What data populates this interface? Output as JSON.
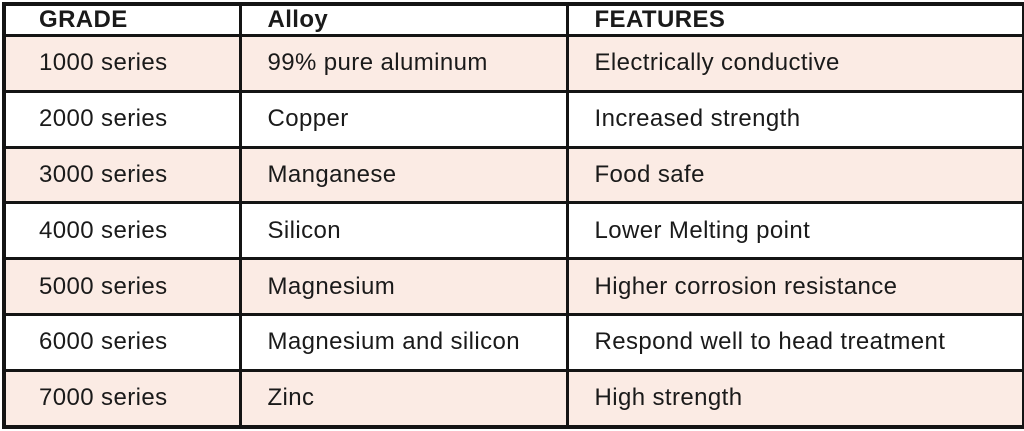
{
  "chart_data": {
    "type": "table",
    "columns": [
      "GRADE",
      "Alloy",
      "FEATURES"
    ],
    "rows": [
      [
        "1000 series",
        "99% pure aluminum",
        "Electrically conductive"
      ],
      [
        "2000 series",
        "Copper",
        "Increased strength"
      ],
      [
        "3000 series",
        "Manganese",
        "Food safe"
      ],
      [
        "4000 series",
        "Silicon",
        "Lower Melting point"
      ],
      [
        "5000 series",
        "Magnesium",
        "Higher corrosion resistance"
      ],
      [
        "6000 series",
        "Magnesium and silicon",
        "Respond well to head treatment"
      ],
      [
        "7000 series",
        "Zinc",
        "High strength"
      ]
    ],
    "layout_hints": "header row white, data rows alternate pink/white starting pink, black grid borders"
  },
  "colors": {
    "row_highlight": "#fbebe4",
    "row_plain": "#ffffff",
    "border": "#141414",
    "text": "#1a1a1a"
  }
}
